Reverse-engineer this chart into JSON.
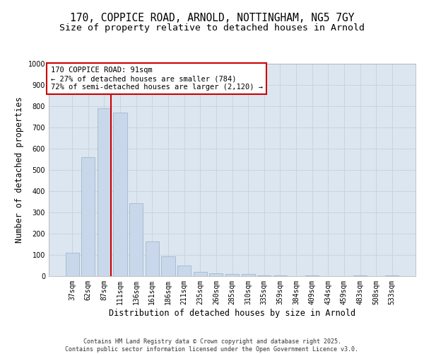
{
  "title_line1": "170, COPPICE ROAD, ARNOLD, NOTTINGHAM, NG5 7GY",
  "title_line2": "Size of property relative to detached houses in Arnold",
  "xlabel": "Distribution of detached houses by size in Arnold",
  "ylabel": "Number of detached properties",
  "categories": [
    "37sqm",
    "62sqm",
    "87sqm",
    "111sqm",
    "136sqm",
    "161sqm",
    "186sqm",
    "211sqm",
    "235sqm",
    "260sqm",
    "285sqm",
    "310sqm",
    "335sqm",
    "359sqm",
    "384sqm",
    "409sqm",
    "434sqm",
    "459sqm",
    "483sqm",
    "508sqm",
    "533sqm"
  ],
  "values": [
    110,
    560,
    790,
    770,
    345,
    165,
    95,
    50,
    20,
    15,
    10,
    10,
    5,
    5,
    0,
    5,
    0,
    0,
    5,
    0,
    5
  ],
  "bar_color": "#c8d8ea",
  "bar_edge_color": "#9ab0c8",
  "grid_color": "#c8d4e0",
  "bg_color": "#dce6f0",
  "annotation_box_text": "170 COPPICE ROAD: 91sqm\n← 27% of detached houses are smaller (784)\n72% of semi-detached houses are larger (2,120) →",
  "annotation_box_color": "#cc0000",
  "vline_color": "#cc0000",
  "vline_x": 2.43,
  "ylim": [
    0,
    1000
  ],
  "yticks": [
    0,
    100,
    200,
    300,
    400,
    500,
    600,
    700,
    800,
    900,
    1000
  ],
  "footer_text": "Contains HM Land Registry data © Crown copyright and database right 2025.\nContains public sector information licensed under the Open Government Licence v3.0.",
  "title_fontsize": 10.5,
  "subtitle_fontsize": 9.5,
  "tick_fontsize": 7,
  "ylabel_fontsize": 8.5,
  "xlabel_fontsize": 8.5,
  "annotation_fontsize": 7.5,
  "footer_fontsize": 6
}
